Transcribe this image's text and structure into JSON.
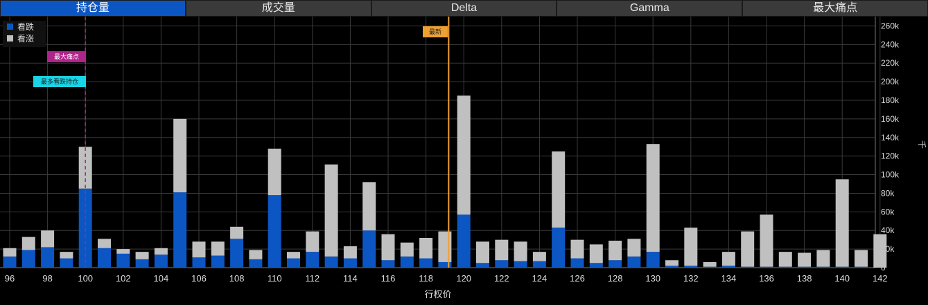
{
  "tabs": [
    "持仓量",
    "成交量",
    "Delta",
    "Gamma",
    "最大痛点"
  ],
  "active_tab": 0,
  "legend": [
    {
      "label": "看跌",
      "color": "#0c56c4"
    },
    {
      "label": "看涨",
      "color": "#c0c0c0"
    }
  ],
  "markers": {
    "max_pain": {
      "label": "最大痛点",
      "strike": 100,
      "color": "#b0238a"
    },
    "max_put_oi": {
      "label": "最多看跌持仓",
      "strike": 100,
      "color": "#18d4e6"
    },
    "latest": {
      "label": "最新",
      "strike": 119.2,
      "color": "#f0a030"
    }
  },
  "chart_data": {
    "type": "bar",
    "stacked": true,
    "xlabel": "行权价",
    "ylabel": "千",
    "ylim": [
      0,
      270000
    ],
    "yticks": [
      0,
      20000,
      40000,
      60000,
      80000,
      100000,
      120000,
      140000,
      160000,
      180000,
      200000,
      220000,
      240000,
      260000
    ],
    "ytick_labels": [
      "0",
      "20k",
      "40k",
      "60k",
      "80k",
      "100k",
      "120k",
      "140k",
      "160k",
      "180k",
      "200k",
      "220k",
      "240k",
      "260k"
    ],
    "xticks": [
      96,
      98,
      100,
      102,
      104,
      106,
      108,
      110,
      112,
      114,
      116,
      118,
      120,
      122,
      124,
      126,
      128,
      130,
      132,
      134,
      136,
      138,
      140,
      142
    ],
    "categories": [
      96,
      97,
      98,
      99,
      100,
      101,
      102,
      103,
      104,
      105,
      106,
      107,
      108,
      109,
      110,
      111,
      112,
      113,
      114,
      115,
      116,
      117,
      118,
      119,
      120,
      121,
      122,
      123,
      124,
      125,
      126,
      127,
      128,
      129,
      130,
      131,
      132,
      133,
      134,
      135,
      136,
      137,
      138,
      139,
      140,
      141,
      142
    ],
    "series": [
      {
        "name": "看跌",
        "color": "#0c56c4",
        "values": [
          12000,
          19000,
          22000,
          10000,
          85000,
          21000,
          15000,
          9000,
          14000,
          81000,
          11000,
          13000,
          31000,
          9000,
          78000,
          10000,
          17000,
          12000,
          10000,
          40000,
          8000,
          12000,
          10000,
          6000,
          57000,
          5000,
          8000,
          7000,
          7000,
          43000,
          10000,
          5000,
          8000,
          12000,
          17000,
          2000,
          2000,
          1000,
          2000,
          1000,
          1000,
          1000,
          1000,
          1000,
          1000,
          1000,
          0
        ]
      },
      {
        "name": "看涨",
        "color": "#c0c0c0",
        "values": [
          9000,
          14000,
          18000,
          7000,
          45000,
          10000,
          5000,
          8000,
          7000,
          79000,
          17000,
          15000,
          13000,
          10000,
          50000,
          7000,
          22000,
          99000,
          13000,
          52000,
          28000,
          15000,
          22000,
          33000,
          128000,
          23000,
          22000,
          21000,
          10000,
          82000,
          20000,
          20000,
          21000,
          19000,
          116000,
          6000,
          41000,
          5000,
          15000,
          38000,
          56000,
          16000,
          15000,
          18000,
          94000,
          18000,
          36000
        ]
      }
    ]
  }
}
